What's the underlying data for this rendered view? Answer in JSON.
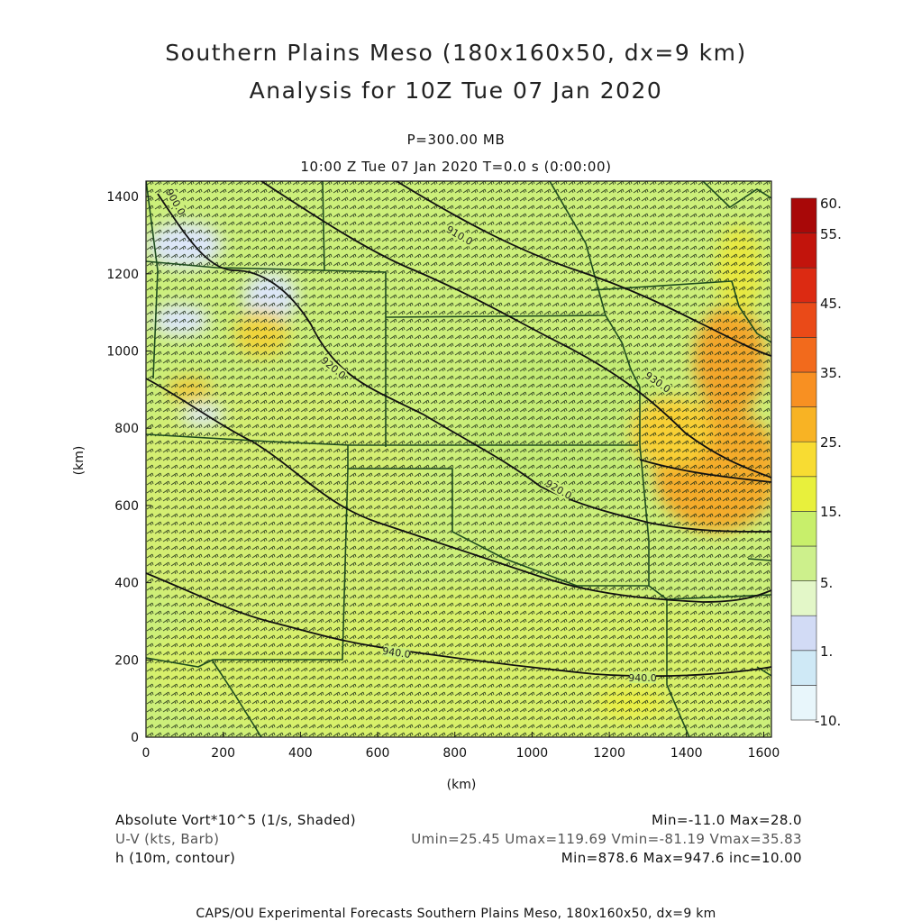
{
  "header": {
    "title_line1": "Southern Plains Meso (180x160x50, dx=9 km)",
    "title_line2": "Analysis for 10Z Tue 07 Jan 2020",
    "level": "P=300.00 MB",
    "time": "10:00 Z Tue 07 Jan 2020    T=0.0 s (0:00:00)"
  },
  "map": {
    "x_axis_label": "(km)",
    "y_axis_label": "(km)",
    "x_range_km": [
      0,
      1620
    ],
    "y_range_km": [
      0,
      1440
    ],
    "x_ticks": [
      "0",
      "200",
      "400",
      "600",
      "800",
      "1000",
      "1200",
      "1400",
      "1600"
    ],
    "y_ticks": [
      "0",
      "200",
      "400",
      "600",
      "800",
      "1000",
      "1200",
      "1400"
    ],
    "contour_labels": [
      {
        "text": "900.0",
        "x_km": 60,
        "y_km": 1370
      },
      {
        "text": "910.0",
        "x_km": 820,
        "y_km": 1300
      },
      {
        "text": "920.0",
        "x_km": 500,
        "y_km": 970
      },
      {
        "text": "930.0",
        "x_km": 1320,
        "y_km": 920
      },
      {
        "text": "920.0",
        "x_km": 1050,
        "y_km": 640
      },
      {
        "text": "940.0",
        "x_km": 650,
        "y_km": 220
      },
      {
        "text": "940.0",
        "x_km": 1250,
        "y_km": 160
      }
    ]
  },
  "colorbar": {
    "labels": [
      "60.",
      "55.",
      "45.",
      "35.",
      "25.",
      "15.",
      "5.",
      "1.",
      "-10."
    ],
    "colors": [
      "#e8f6fb",
      "#cfe9f6",
      "#d2dbf5",
      "#e3f7c8",
      "#cdf08c",
      "#c8ef6b",
      "#e8f03c",
      "#f8dc32",
      "#f8b324",
      "#f89022",
      "#f26a1c",
      "#ea4a18",
      "#dc2a12",
      "#c2140c",
      "#a80808"
    ]
  },
  "footer_info": {
    "line1_left": "Absolute Vort*10^5 (1/s, Shaded)",
    "line1_right": "Min=-11.0 Max=28.0",
    "line2_left": "U-V (kts, Barb)",
    "line2_right": "Umin=25.45 Umax=119.69 Vmin=-81.19 Vmax=35.83",
    "line3_left": "h (10m, contour)",
    "line3_right": "Min=878.6 Max=947.6 inc=10.00"
  },
  "credit": "CAPS/OU Experimental Forecasts  Southern Plains Meso, 180x160x50, dx=9 km"
}
